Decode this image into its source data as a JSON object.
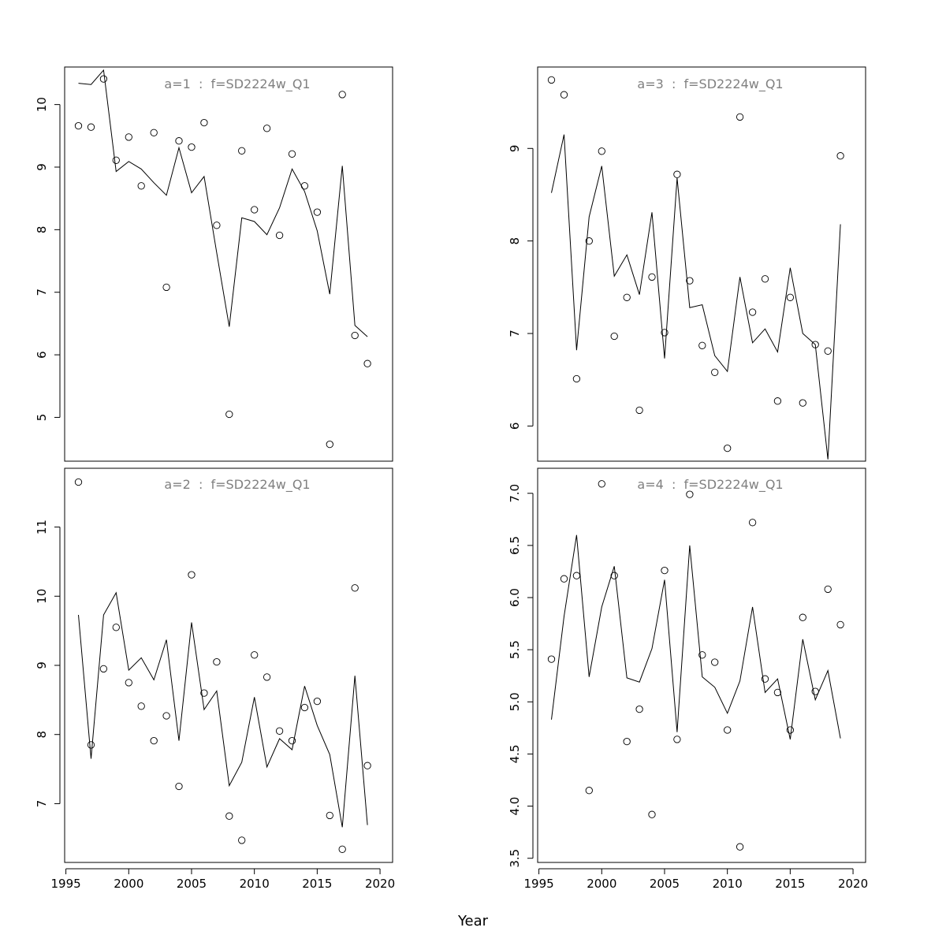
{
  "figure": {
    "xlabel": "Year",
    "line_color": "#000000",
    "title_color": "#808080"
  },
  "chart_data": [
    {
      "type": "scatter+line",
      "title": "a=1  :  f=SD2224w_Q1",
      "xlabel": "Year",
      "ylabel": "",
      "xlim": [
        1994.9,
        2021.0
      ],
      "ylim": [
        4.3,
        10.6
      ],
      "xticks": [
        1995,
        2000,
        2005,
        2010,
        2015,
        2020
      ],
      "yticks": [
        5,
        6,
        7,
        8,
        9,
        10
      ],
      "yticks_labels": [
        "5",
        "6",
        "7",
        "8",
        "9",
        "10"
      ],
      "show_x_axis": false,
      "x": [
        1996,
        1997,
        1998,
        1999,
        2000,
        2001,
        2002,
        2003,
        2004,
        2005,
        2006,
        2007,
        2008,
        2009,
        2010,
        2011,
        2012,
        2013,
        2014,
        2015,
        2016,
        2017,
        2018,
        2019
      ],
      "observed": [
        9.66,
        9.64,
        10.41,
        9.11,
        9.48,
        8.7,
        9.55,
        7.08,
        9.42,
        9.32,
        9.71,
        8.07,
        5.05,
        9.26,
        8.32,
        9.62,
        7.91,
        9.21,
        8.7,
        8.28,
        4.57,
        10.16,
        6.31,
        5.86
      ],
      "fitted": [
        10.34,
        10.32,
        10.55,
        8.93,
        9.09,
        8.97,
        8.75,
        8.55,
        9.31,
        8.59,
        8.85,
        7.63,
        6.45,
        8.19,
        8.13,
        7.92,
        8.35,
        8.97,
        8.61,
        7.98,
        6.97,
        9.02,
        6.47,
        6.29
      ]
    },
    {
      "type": "scatter+line",
      "title": "a=2  :  f=SD2224w_Q1",
      "xlabel": "Year",
      "ylabel": "",
      "xlim": [
        1994.9,
        2021.0
      ],
      "ylim": [
        6.15,
        11.85
      ],
      "xticks": [
        1995,
        2000,
        2005,
        2010,
        2015,
        2020
      ],
      "yticks": [
        7,
        8,
        9,
        10,
        11
      ],
      "yticks_labels": [
        "7",
        "8",
        "9",
        "10",
        "11"
      ],
      "show_x_axis": true,
      "x": [
        1996,
        1997,
        1998,
        1999,
        2000,
        2001,
        2002,
        2003,
        2004,
        2005,
        2006,
        2007,
        2008,
        2009,
        2010,
        2011,
        2012,
        2013,
        2014,
        2015,
        2016,
        2017,
        2018,
        2019
      ],
      "observed": [
        11.65,
        7.85,
        8.95,
        9.55,
        8.75,
        8.41,
        7.91,
        8.27,
        7.25,
        10.31,
        8.6,
        9.05,
        6.82,
        6.47,
        9.15,
        8.83,
        8.05,
        7.91,
        8.39,
        8.48,
        6.83,
        6.34,
        10.12,
        7.55
      ],
      "fitted": [
        9.73,
        7.65,
        9.73,
        10.05,
        8.93,
        9.11,
        8.79,
        9.37,
        7.91,
        9.62,
        8.36,
        8.63,
        7.26,
        7.6,
        8.54,
        7.53,
        7.94,
        7.78,
        8.7,
        8.13,
        7.71,
        6.66,
        8.85,
        6.69
      ]
    },
    {
      "type": "scatter+line",
      "title": "a=3  :  f=SD2224w_Q1",
      "xlabel": "Year",
      "ylabel": "",
      "xlim": [
        1994.9,
        2021.0
      ],
      "ylim": [
        5.62,
        9.88
      ],
      "xticks": [
        1995,
        2000,
        2005,
        2010,
        2015,
        2020
      ],
      "yticks": [
        6,
        7,
        8,
        9
      ],
      "yticks_labels": [
        "6",
        "7",
        "8",
        "9"
      ],
      "show_x_axis": false,
      "x": [
        1996,
        1997,
        1998,
        1999,
        2000,
        2001,
        2002,
        2003,
        2004,
        2005,
        2006,
        2007,
        2008,
        2009,
        2010,
        2011,
        2012,
        2013,
        2014,
        2015,
        2016,
        2017,
        2018,
        2019
      ],
      "observed": [
        9.74,
        9.58,
        6.51,
        8.0,
        8.97,
        6.97,
        7.39,
        6.17,
        7.61,
        7.01,
        8.72,
        7.57,
        6.87,
        6.58,
        5.76,
        9.34,
        7.23,
        7.59,
        6.27,
        7.39,
        6.25,
        6.88,
        6.81,
        8.92
      ],
      "fitted": [
        8.52,
        9.15,
        6.82,
        8.26,
        8.81,
        7.62,
        7.85,
        7.42,
        8.31,
        6.73,
        8.68,
        7.28,
        7.31,
        6.76,
        6.59,
        7.61,
        6.9,
        7.05,
        6.8,
        7.71,
        7.0,
        6.88,
        5.64,
        8.18
      ]
    },
    {
      "type": "scatter+line",
      "title": "a=4  :  f=SD2224w_Q1",
      "xlabel": "Year",
      "ylabel": "",
      "xlim": [
        1994.9,
        2021.0
      ],
      "ylim": [
        3.46,
        7.24
      ],
      "xticks": [
        1995,
        2000,
        2005,
        2010,
        2015,
        2020
      ],
      "yticks": [
        3.5,
        4.0,
        4.5,
        5.0,
        5.5,
        6.0,
        6.5,
        7.0
      ],
      "yticks_labels": [
        "3.5",
        "4.0",
        "4.5",
        "5.0",
        "5.5",
        "6.0",
        "6.5",
        "7.0"
      ],
      "show_x_axis": true,
      "x": [
        1996,
        1997,
        1998,
        1999,
        2000,
        2001,
        2002,
        2003,
        2004,
        2005,
        2006,
        2007,
        2008,
        2009,
        2010,
        2011,
        2012,
        2013,
        2014,
        2015,
        2016,
        2017,
        2018,
        2019
      ],
      "observed": [
        5.41,
        6.18,
        6.21,
        4.15,
        7.09,
        6.21,
        4.62,
        4.93,
        3.92,
        6.26,
        4.64,
        6.99,
        5.45,
        5.38,
        4.73,
        3.61,
        6.72,
        5.22,
        5.09,
        4.73,
        5.81,
        5.1,
        6.08,
        5.74
      ],
      "fitted": [
        4.83,
        5.82,
        6.6,
        5.24,
        5.91,
        6.3,
        5.23,
        5.19,
        5.51,
        6.17,
        4.71,
        6.5,
        5.24,
        5.14,
        4.89,
        5.2,
        5.91,
        5.09,
        5.22,
        4.64,
        5.6,
        5.02,
        5.3,
        4.65
      ]
    }
  ]
}
